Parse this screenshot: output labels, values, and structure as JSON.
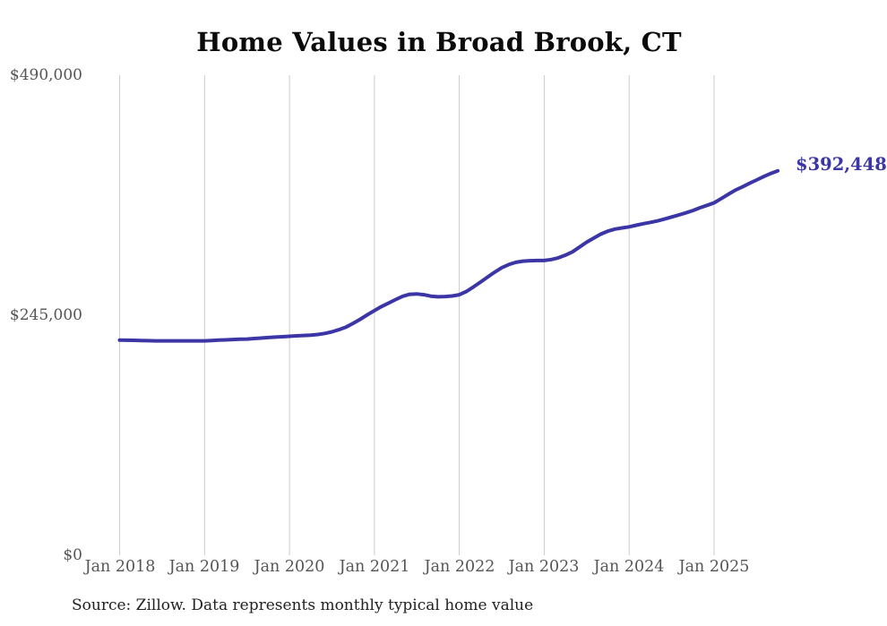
{
  "chart_data": {
    "type": "line",
    "title": "Home Values in Broad Brook, CT",
    "source_note": "Source: Zillow. Data represents monthly typical home value",
    "colors": {
      "line": "#3b35a5",
      "end_label": "#3b35a5",
      "gridline": "#cbcbcb",
      "tick_label": "#555555",
      "title": "#0b0b0b",
      "source": "#222222"
    },
    "grid": "vertical-only",
    "legend": "none",
    "x_tick_labels": [
      "Jan 2018",
      "Jan 2019",
      "Jan 2020",
      "Jan 2021",
      "Jan 2022",
      "Jan 2023",
      "Jan 2024",
      "Jan 2025"
    ],
    "x_months_per_gridline": 12,
    "y_axis": {
      "min": 0,
      "max": 490000,
      "ticks": [
        {
          "label": "$490,000",
          "value": 490000
        },
        {
          "label": "$245,000",
          "value": 245000
        },
        {
          "label": "$0",
          "value": 0
        }
      ]
    },
    "series": [
      {
        "name": "Typical home value",
        "start_month": "2018-01",
        "interval": "monthly",
        "end_month": "2025-10",
        "end_value": 392448,
        "end_label": "$392,448",
        "values": [
          219600,
          219500,
          219400,
          219200,
          219000,
          218900,
          218900,
          218900,
          218900,
          218900,
          218900,
          218900,
          218900,
          219200,
          219600,
          219900,
          220200,
          220500,
          220700,
          221200,
          221700,
          222200,
          222650,
          223100,
          223500,
          223950,
          224300,
          224750,
          225300,
          226400,
          228050,
          230250,
          232900,
          236750,
          240850,
          245450,
          249750,
          253900,
          257450,
          261000,
          264350,
          266350,
          266800,
          265900,
          264500,
          263800,
          264150,
          264700,
          265900,
          269250,
          273850,
          278800,
          283900,
          289000,
          293550,
          296750,
          299050,
          300250,
          300700,
          300900,
          300900,
          301900,
          303600,
          306350,
          309750,
          314700,
          319600,
          323700,
          327850,
          330800,
          332900,
          334100,
          335200,
          336850,
          338400,
          339800,
          341250,
          343200,
          345300,
          347300,
          349500,
          351900,
          354700,
          357200,
          359750,
          364050,
          368450,
          372750,
          376000,
          379650,
          383000,
          386500,
          389700,
          392448
        ]
      }
    ]
  }
}
